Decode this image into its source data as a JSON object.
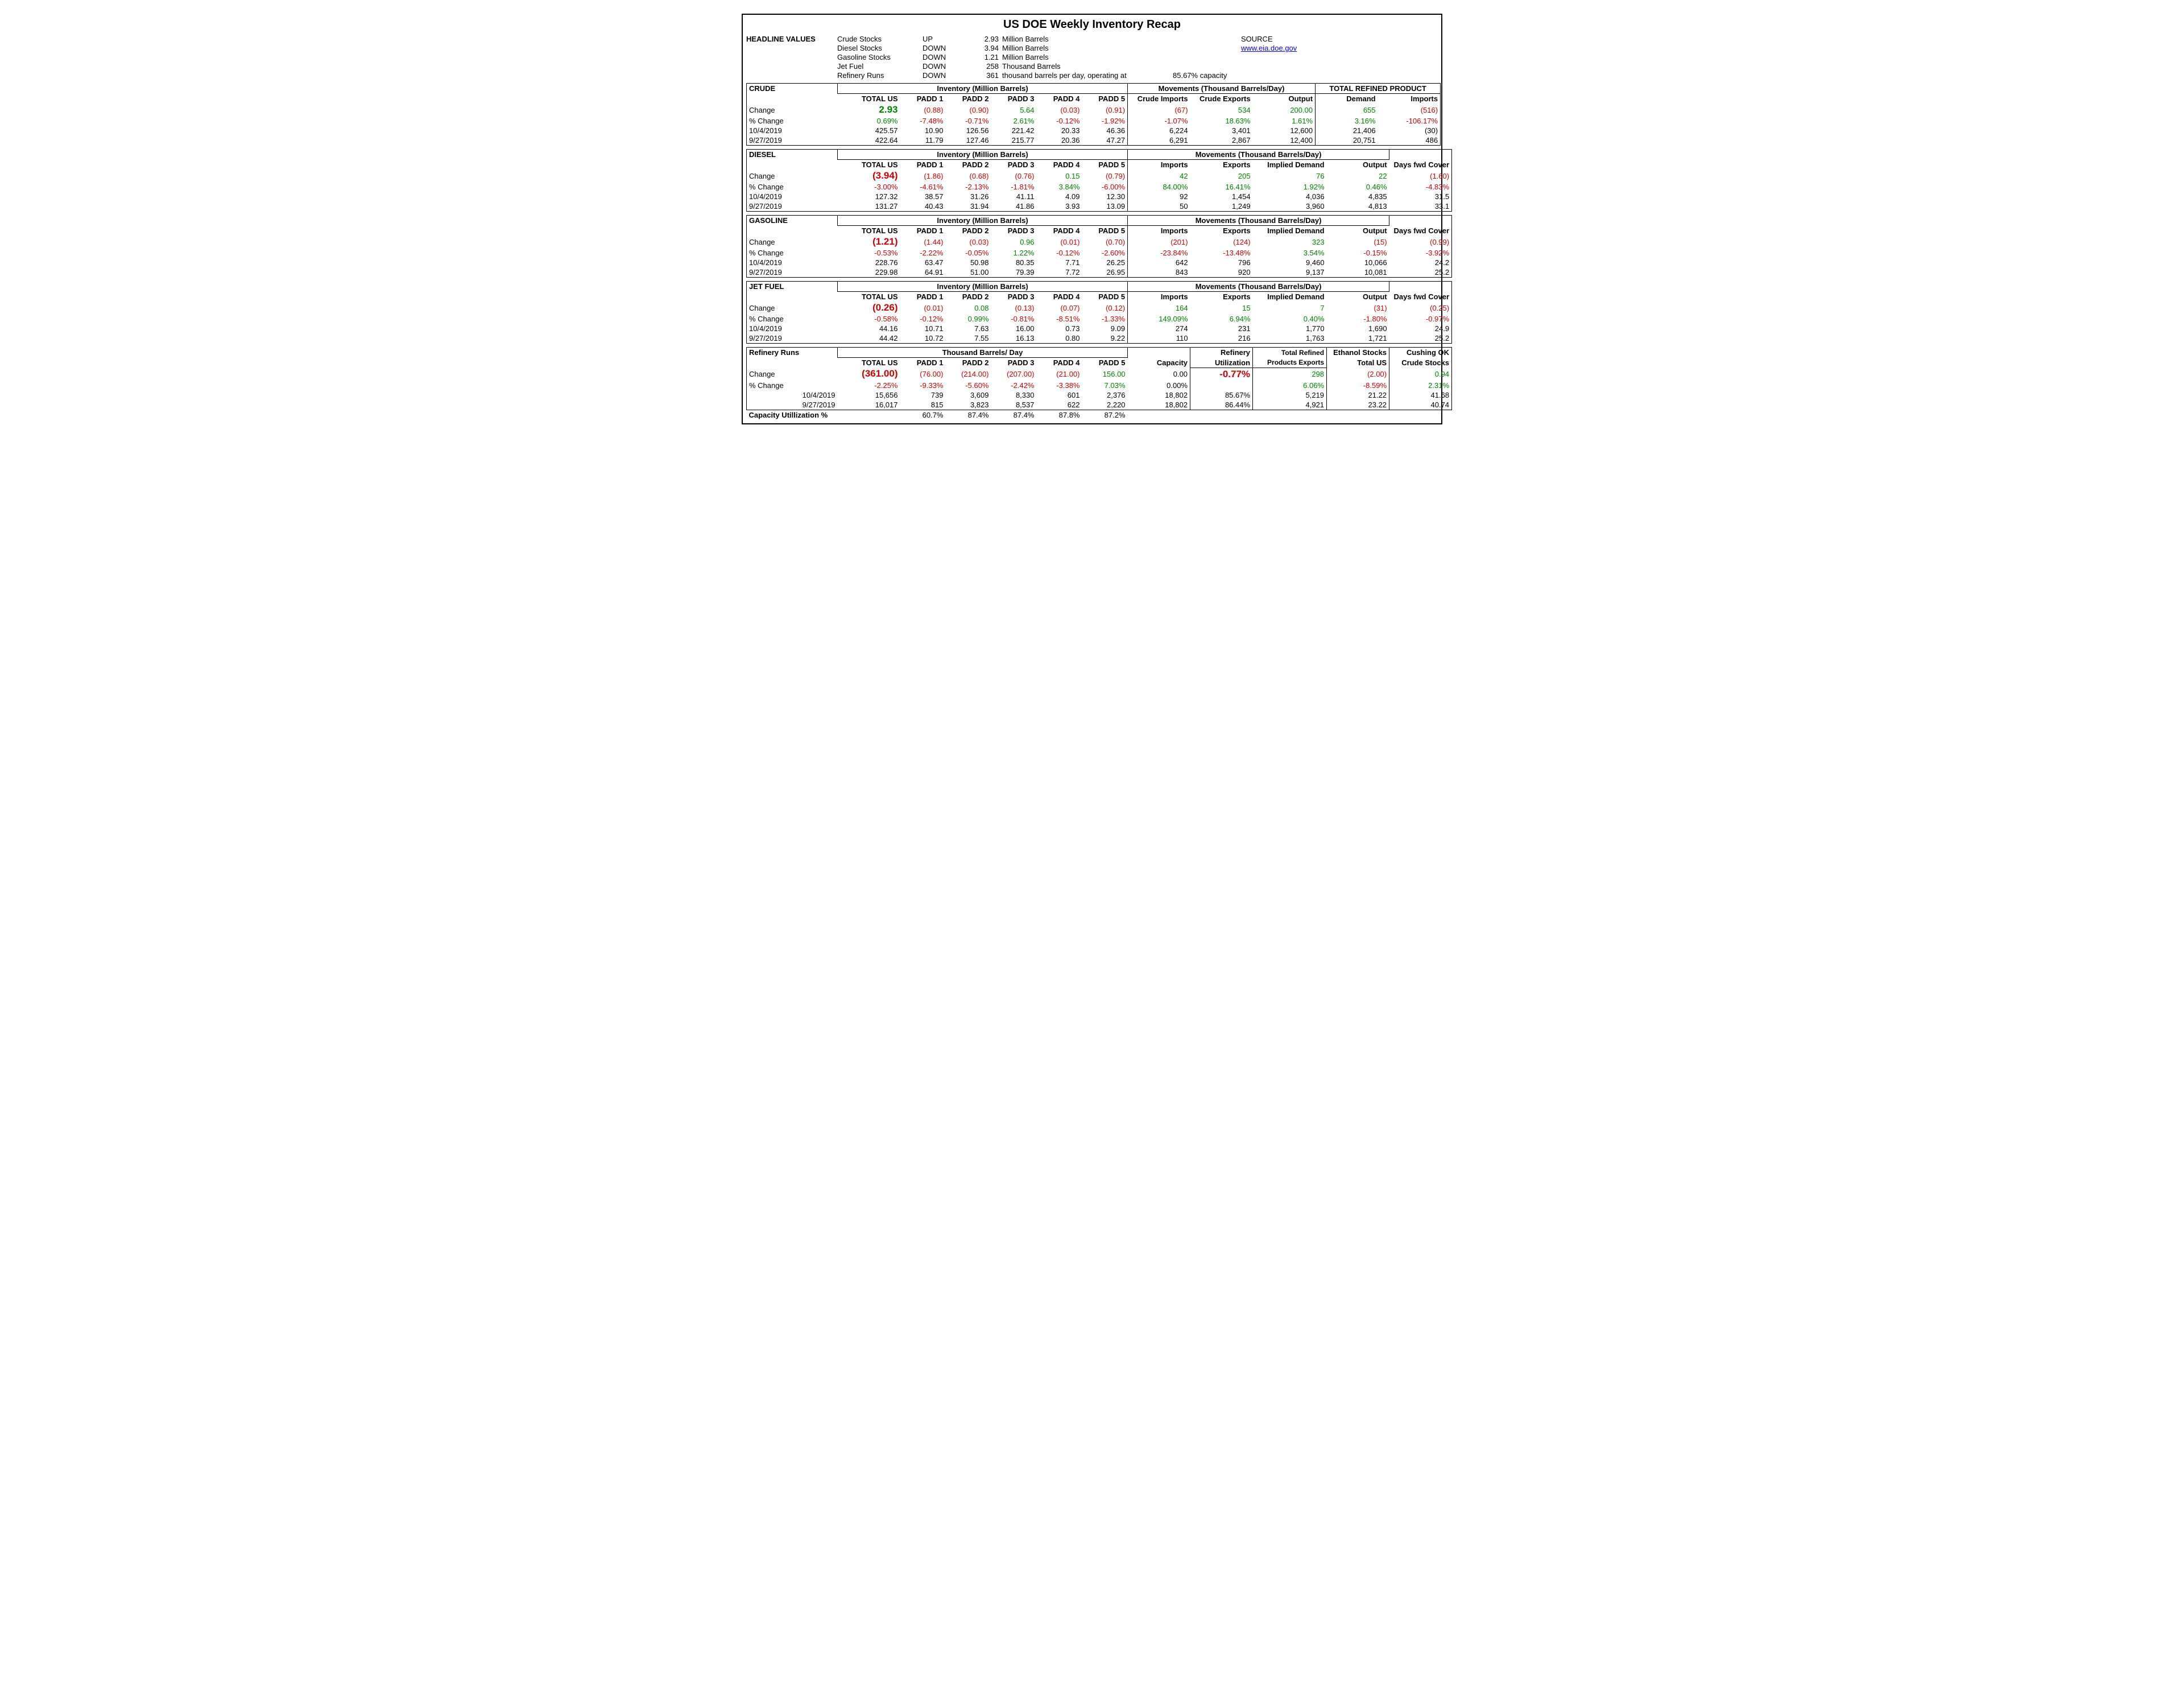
{
  "title": "US DOE Weekly Inventory Recap",
  "headline_label": "HEADLINE VALUES",
  "source_label": "SOURCE",
  "source_link": "www.eia.doe.gov",
  "headline": [
    {
      "name": "Crude Stocks",
      "dir": "UP",
      "val": "2.93",
      "unit": "Million Barrels"
    },
    {
      "name": "Diesel Stocks",
      "dir": "DOWN",
      "val": "3.94",
      "unit": "Million Barrels"
    },
    {
      "name": "Gasoline Stocks",
      "dir": "DOWN",
      "val": "1.21",
      "unit": "Million Barrels"
    },
    {
      "name": "Jet Fuel",
      "dir": "DOWN",
      "val": "258",
      "unit": "Thousand Barrels"
    },
    {
      "name": "Refinery Runs",
      "dir": "DOWN",
      "val": "361",
      "unit": "thousand barrels per day, operating at",
      "extra": "85.67% capacity"
    }
  ],
  "dates": {
    "curr": "10/4/2019",
    "prev": "9/27/2019"
  },
  "row_labels": {
    "change": "Change",
    "pct": "% Change",
    "caputil": "Capacity Utillization %"
  },
  "col_labels": {
    "total": "TOTAL US",
    "p1": "PADD 1",
    "p2": "PADD 2",
    "p3": "PADD 3",
    "p4": "PADD 4",
    "p5": "PADD 5",
    "inv": "Inventory (Million Barrels)",
    "mov": "Movements (Thousand Barrels/Day)",
    "cimp": "Crude Imports",
    "cexp": "Crude Exports",
    "out": "Output",
    "imp": "Imports",
    "exp": "Exports",
    "idem": "Implied Demand",
    "dfc": "Days fwd Cover",
    "trp": "TOTAL REFINED PRODUCT",
    "dem": "Demand",
    "tbd": "Thousand Barrels/ Day",
    "cap": "Capacity",
    "rutil": "Refinery",
    "rutil2": "Utilization",
    "tre": "Total Refined",
    "tre2": "Products Exports",
    "eth": "Ethanol Stocks",
    "eth2": "Total US",
    "cok": "Cushing OK",
    "cok2": "Crude Stocks"
  },
  "colors": {
    "neg": "#cc0000",
    "pos": "#008000",
    "text": "#000000",
    "link": "#0000ee"
  },
  "crude": {
    "label": "CRUDE",
    "change": {
      "total": "2.93",
      "p1": "(0.88)",
      "p2": "(0.90)",
      "p3": "5.64",
      "p4": "(0.03)",
      "p5": "(0.91)",
      "cimp": "(67)",
      "cexp": "534",
      "out": "200.00",
      "dem": "655",
      "imp": "(516)"
    },
    "sign": {
      "total": "pos",
      "p1": "neg",
      "p2": "neg",
      "p3": "pos",
      "p4": "neg",
      "p5": "neg",
      "cimp": "neg",
      "cexp": "pos",
      "out": "pos",
      "dem": "pos",
      "imp": "neg"
    },
    "pct": {
      "total": "0.69%",
      "p1": "-7.48%",
      "p2": "-0.71%",
      "p3": "2.61%",
      "p4": "-0.12%",
      "p5": "-1.92%",
      "cimp": "-1.07%",
      "cexp": "18.63%",
      "out": "1.61%",
      "dem": "3.16%",
      "imp": "-106.17%"
    },
    "psign": {
      "total": "pos",
      "p1": "neg",
      "p2": "neg",
      "p3": "pos",
      "p4": "neg",
      "p5": "neg",
      "cimp": "neg",
      "cexp": "pos",
      "out": "pos",
      "dem": "pos",
      "imp": "neg"
    },
    "curr": {
      "total": "425.57",
      "p1": "10.90",
      "p2": "126.56",
      "p3": "221.42",
      "p4": "20.33",
      "p5": "46.36",
      "cimp": "6,224",
      "cexp": "3,401",
      "out": "12,600",
      "dem": "21,406",
      "imp": "(30)"
    },
    "prev": {
      "total": "422.64",
      "p1": "11.79",
      "p2": "127.46",
      "p3": "215.77",
      "p4": "20.36",
      "p5": "47.27",
      "cimp": "6,291",
      "cexp": "2,867",
      "out": "12,400",
      "dem": "20,751",
      "imp": "486"
    }
  },
  "diesel": {
    "label": "DIESEL",
    "change": {
      "total": "(3.94)",
      "p1": "(1.86)",
      "p2": "(0.68)",
      "p3": "(0.76)",
      "p4": "0.15",
      "p5": "(0.79)",
      "imp": "42",
      "exp": "205",
      "idem": "76",
      "out": "22",
      "dfc": "(1.60)"
    },
    "sign": {
      "total": "neg",
      "p1": "neg",
      "p2": "neg",
      "p3": "neg",
      "p4": "pos",
      "p5": "neg",
      "imp": "pos",
      "exp": "pos",
      "idem": "pos",
      "out": "pos",
      "dfc": "neg"
    },
    "pct": {
      "total": "-3.00%",
      "p1": "-4.61%",
      "p2": "-2.13%",
      "p3": "-1.81%",
      "p4": "3.84%",
      "p5": "-6.00%",
      "imp": "84.00%",
      "exp": "16.41%",
      "idem": "1.92%",
      "out": "0.46%",
      "dfc": "-4.83%"
    },
    "psign": {
      "total": "neg",
      "p1": "neg",
      "p2": "neg",
      "p3": "neg",
      "p4": "pos",
      "p5": "neg",
      "imp": "pos",
      "exp": "pos",
      "idem": "pos",
      "out": "pos",
      "dfc": "neg"
    },
    "curr": {
      "total": "127.32",
      "p1": "38.57",
      "p2": "31.26",
      "p3": "41.11",
      "p4": "4.09",
      "p5": "12.30",
      "imp": "92",
      "exp": "1,454",
      "idem": "4,036",
      "out": "4,835",
      "dfc": "31.5"
    },
    "prev": {
      "total": "131.27",
      "p1": "40.43",
      "p2": "31.94",
      "p3": "41.86",
      "p4": "3.93",
      "p5": "13.09",
      "imp": "50",
      "exp": "1,249",
      "idem": "3,960",
      "out": "4,813",
      "dfc": "33.1"
    }
  },
  "gasoline": {
    "label": "GASOLINE",
    "change": {
      "total": "(1.21)",
      "p1": "(1.44)",
      "p2": "(0.03)",
      "p3": "0.96",
      "p4": "(0.01)",
      "p5": "(0.70)",
      "imp": "(201)",
      "exp": "(124)",
      "idem": "323",
      "out": "(15)",
      "dfc": "(0.99)"
    },
    "sign": {
      "total": "neg",
      "p1": "neg",
      "p2": "neg",
      "p3": "pos",
      "p4": "neg",
      "p5": "neg",
      "imp": "neg",
      "exp": "neg",
      "idem": "pos",
      "out": "neg",
      "dfc": "neg"
    },
    "pct": {
      "total": "-0.53%",
      "p1": "-2.22%",
      "p2": "-0.05%",
      "p3": "1.22%",
      "p4": "-0.12%",
      "p5": "-2.60%",
      "imp": "-23.84%",
      "exp": "-13.48%",
      "idem": "3.54%",
      "out": "-0.15%",
      "dfc": "-3.92%"
    },
    "psign": {
      "total": "neg",
      "p1": "neg",
      "p2": "neg",
      "p3": "pos",
      "p4": "neg",
      "p5": "neg",
      "imp": "neg",
      "exp": "neg",
      "idem": "pos",
      "out": "neg",
      "dfc": "neg"
    },
    "curr": {
      "total": "228.76",
      "p1": "63.47",
      "p2": "50.98",
      "p3": "80.35",
      "p4": "7.71",
      "p5": "26.25",
      "imp": "642",
      "exp": "796",
      "idem": "9,460",
      "out": "10,066",
      "dfc": "24.2"
    },
    "prev": {
      "total": "229.98",
      "p1": "64.91",
      "p2": "51.00",
      "p3": "79.39",
      "p4": "7.72",
      "p5": "26.95",
      "imp": "843",
      "exp": "920",
      "idem": "9,137",
      "out": "10,081",
      "dfc": "25.2"
    }
  },
  "jet": {
    "label": "JET FUEL",
    "change": {
      "total": "(0.26)",
      "p1": "(0.01)",
      "p2": "0.08",
      "p3": "(0.13)",
      "p4": "(0.07)",
      "p5": "(0.12)",
      "imp": "164",
      "exp": "15",
      "idem": "7",
      "out": "(31)",
      "dfc": "(0.25)"
    },
    "sign": {
      "total": "neg",
      "p1": "neg",
      "p2": "pos",
      "p3": "neg",
      "p4": "neg",
      "p5": "neg",
      "imp": "pos",
      "exp": "pos",
      "idem": "pos",
      "out": "neg",
      "dfc": "neg"
    },
    "pct": {
      "total": "-0.58%",
      "p1": "-0.12%",
      "p2": "0.99%",
      "p3": "-0.81%",
      "p4": "-8.51%",
      "p5": "-1.33%",
      "imp": "149.09%",
      "exp": "6.94%",
      "idem": "0.40%",
      "out": "-1.80%",
      "dfc": "-0.97%"
    },
    "psign": {
      "total": "neg",
      "p1": "neg",
      "p2": "pos",
      "p3": "neg",
      "p4": "neg",
      "p5": "neg",
      "imp": "pos",
      "exp": "pos",
      "idem": "pos",
      "out": "neg",
      "dfc": "neg"
    },
    "curr": {
      "total": "44.16",
      "p1": "10.71",
      "p2": "7.63",
      "p3": "16.00",
      "p4": "0.73",
      "p5": "9.09",
      "imp": "274",
      "exp": "231",
      "idem": "1,770",
      "out": "1,690",
      "dfc": "24.9"
    },
    "prev": {
      "total": "44.42",
      "p1": "10.72",
      "p2": "7.55",
      "p3": "16.13",
      "p4": "0.80",
      "p5": "9.22",
      "imp": "110",
      "exp": "216",
      "idem": "1,763",
      "out": "1,721",
      "dfc": "25.2"
    }
  },
  "runs": {
    "label": "Refinery Runs",
    "change": {
      "total": "(361.00)",
      "p1": "(76.00)",
      "p2": "(214.00)",
      "p3": "(207.00)",
      "p4": "(21.00)",
      "p5": "156.00",
      "cap": "0.00",
      "util": "-0.77%",
      "tre": "298",
      "eth": "(2.00)",
      "cok": "0.94"
    },
    "sign": {
      "total": "neg",
      "p1": "neg",
      "p2": "neg",
      "p3": "neg",
      "p4": "neg",
      "p5": "pos",
      "cap": "",
      "util": "neg",
      "tre": "pos",
      "eth": "neg",
      "cok": "pos"
    },
    "pct": {
      "total": "-2.25%",
      "p1": "-9.33%",
      "p2": "-5.60%",
      "p3": "-2.42%",
      "p4": "-3.38%",
      "p5": "7.03%",
      "cap": "0.00%",
      "util": "",
      "tre": "6.06%",
      "eth": "-8.59%",
      "cok": "2.31%"
    },
    "psign": {
      "total": "neg",
      "p1": "neg",
      "p2": "neg",
      "p3": "neg",
      "p4": "neg",
      "p5": "pos",
      "cap": "",
      "util": "",
      "tre": "pos",
      "eth": "neg",
      "cok": "pos"
    },
    "curr": {
      "total": "15,656",
      "p1": "739",
      "p2": "3,609",
      "p3": "8,330",
      "p4": "601",
      "p5": "2,376",
      "cap": "18,802",
      "util": "85.67%",
      "tre": "5,219",
      "eth": "21.22",
      "cok": "41.68"
    },
    "prev": {
      "total": "16,017",
      "p1": "815",
      "p2": "3,823",
      "p3": "8,537",
      "p4": "622",
      "p5": "2,220",
      "cap": "18,802",
      "util": "86.44%",
      "tre": "4,921",
      "eth": "23.22",
      "cok": "40.74"
    },
    "caputil": {
      "p1": "60.7%",
      "p2": "87.4%",
      "p3": "87.4%",
      "p4": "87.8%",
      "p5": "87.2%"
    }
  }
}
